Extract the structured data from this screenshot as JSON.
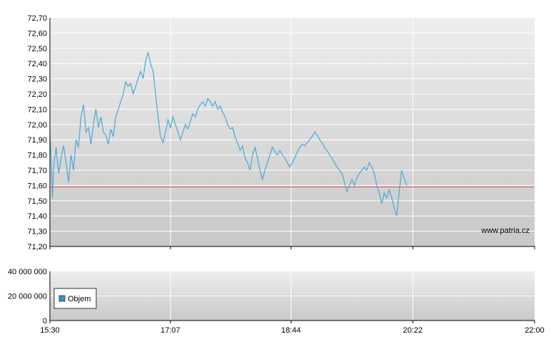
{
  "chart_data": [
    {
      "type": "line",
      "title": "",
      "xlabel": "",
      "ylabel": "",
      "ylim": [
        71.2,
        72.7
      ],
      "yticks": [
        "72,70",
        "72,60",
        "72,50",
        "72,40",
        "72,30",
        "72,20",
        "72,10",
        "72,00",
        "71,90",
        "71,80",
        "71,70",
        "71,60",
        "71,50",
        "71,40",
        "71,30",
        "71,20"
      ],
      "x_time_range": [
        "15:30",
        "22:00"
      ],
      "reference_line": 71.59,
      "grid": true,
      "annotation": "www.patria.cz",
      "colors": {
        "line": "#4aa8d8",
        "reference": "#e05050",
        "grid": "#ffffff"
      },
      "series": [
        {
          "points": [
            [
              "15:30",
              71.95
            ],
            [
              "15:31",
              71.78
            ],
            [
              "15:32",
              71.52
            ],
            [
              "15:33",
              71.72
            ],
            [
              "15:35",
              71.85
            ],
            [
              "15:37",
              71.68
            ],
            [
              "15:39",
              71.78
            ],
            [
              "15:41",
              71.86
            ],
            [
              "15:43",
              71.75
            ],
            [
              "15:45",
              71.62
            ],
            [
              "15:47",
              71.8
            ],
            [
              "15:49",
              71.7
            ],
            [
              "15:51",
              71.9
            ],
            [
              "15:53",
              71.85
            ],
            [
              "15:55",
              72.05
            ],
            [
              "15:57",
              72.13
            ],
            [
              "15:59",
              71.95
            ],
            [
              "16:01",
              71.98
            ],
            [
              "16:03",
              71.87
            ],
            [
              "16:05",
              72.0
            ],
            [
              "16:07",
              72.1
            ],
            [
              "16:09",
              71.98
            ],
            [
              "16:11",
              72.05
            ],
            [
              "16:13",
              71.95
            ],
            [
              "16:15",
              71.93
            ],
            [
              "16:17",
              71.87
            ],
            [
              "16:19",
              71.97
            ],
            [
              "16:21",
              71.92
            ],
            [
              "16:23",
              72.05
            ],
            [
              "16:25",
              72.1
            ],
            [
              "16:27",
              72.15
            ],
            [
              "16:29",
              72.2
            ],
            [
              "16:31",
              72.28
            ],
            [
              "16:33",
              72.25
            ],
            [
              "16:35",
              72.27
            ],
            [
              "16:37",
              72.2
            ],
            [
              "16:39",
              72.25
            ],
            [
              "16:41",
              72.3
            ],
            [
              "16:43",
              72.35
            ],
            [
              "16:45",
              72.3
            ],
            [
              "16:47",
              72.42
            ],
            [
              "16:49",
              72.47
            ],
            [
              "16:51",
              72.4
            ],
            [
              "16:53",
              72.35
            ],
            [
              "16:55",
              72.2
            ],
            [
              "16:57",
              72.05
            ],
            [
              "16:59",
              71.92
            ],
            [
              "17:01",
              71.88
            ],
            [
              "17:03",
              71.95
            ],
            [
              "17:05",
              72.03
            ],
            [
              "17:07",
              71.98
            ],
            [
              "17:09",
              72.05
            ],
            [
              "17:11",
              72.0
            ],
            [
              "17:13",
              71.95
            ],
            [
              "17:15",
              71.9
            ],
            [
              "17:17",
              71.95
            ],
            [
              "17:19",
              72.0
            ],
            [
              "17:21",
              71.97
            ],
            [
              "17:23",
              72.02
            ],
            [
              "17:25",
              72.07
            ],
            [
              "17:27",
              72.05
            ],
            [
              "17:29",
              72.1
            ],
            [
              "17:31",
              72.13
            ],
            [
              "17:33",
              72.15
            ],
            [
              "17:35",
              72.12
            ],
            [
              "17:37",
              72.17
            ],
            [
              "17:39",
              72.15
            ],
            [
              "17:41",
              72.12
            ],
            [
              "17:43",
              72.15
            ],
            [
              "17:45",
              72.1
            ],
            [
              "17:47",
              72.12
            ],
            [
              "17:49",
              72.08
            ],
            [
              "17:51",
              72.05
            ],
            [
              "17:53",
              72.0
            ],
            [
              "17:55",
              71.97
            ],
            [
              "17:57",
              71.98
            ],
            [
              "17:59",
              71.92
            ],
            [
              "18:01",
              71.88
            ],
            [
              "18:03",
              71.83
            ],
            [
              "18:05",
              71.86
            ],
            [
              "18:07",
              71.78
            ],
            [
              "18:09",
              71.75
            ],
            [
              "18:11",
              71.7
            ],
            [
              "18:13",
              71.8
            ],
            [
              "18:15",
              71.85
            ],
            [
              "18:17",
              71.78
            ],
            [
              "18:19",
              71.7
            ],
            [
              "18:21",
              71.64
            ],
            [
              "18:23",
              71.7
            ],
            [
              "18:25",
              71.75
            ],
            [
              "18:27",
              71.8
            ],
            [
              "18:29",
              71.85
            ],
            [
              "18:31",
              71.82
            ],
            [
              "18:33",
              71.8
            ],
            [
              "18:35",
              71.83
            ],
            [
              "18:37",
              71.8
            ],
            [
              "18:39",
              71.78
            ],
            [
              "18:41",
              71.75
            ],
            [
              "18:43",
              71.72
            ],
            [
              "18:45",
              71.75
            ],
            [
              "18:47",
              71.78
            ],
            [
              "18:49",
              71.82
            ],
            [
              "18:51",
              71.85
            ],
            [
              "18:53",
              71.87
            ],
            [
              "18:55",
              71.86
            ],
            [
              "18:57",
              71.88
            ],
            [
              "18:59",
              71.9
            ],
            [
              "19:01",
              71.92
            ],
            [
              "19:03",
              71.95
            ],
            [
              "19:05",
              71.93
            ],
            [
              "19:07",
              71.9
            ],
            [
              "19:09",
              71.88
            ],
            [
              "19:11",
              71.85
            ],
            [
              "19:13",
              71.83
            ],
            [
              "19:15",
              71.8
            ],
            [
              "19:17",
              71.78
            ],
            [
              "19:19",
              71.75
            ],
            [
              "19:21",
              71.72
            ],
            [
              "19:23",
              71.7
            ],
            [
              "19:25",
              71.68
            ],
            [
              "19:27",
              71.62
            ],
            [
              "19:29",
              71.56
            ],
            [
              "19:31",
              71.6
            ],
            [
              "19:33",
              71.64
            ],
            [
              "19:35",
              71.6
            ],
            [
              "19:37",
              71.65
            ],
            [
              "19:39",
              71.68
            ],
            [
              "19:41",
              71.7
            ],
            [
              "19:43",
              71.72
            ],
            [
              "19:45",
              71.7
            ],
            [
              "19:47",
              71.75
            ],
            [
              "19:49",
              71.72
            ],
            [
              "19:51",
              71.68
            ],
            [
              "19:53",
              71.6
            ],
            [
              "19:55",
              71.55
            ],
            [
              "19:57",
              71.48
            ],
            [
              "19:59",
              71.55
            ],
            [
              "20:01",
              71.52
            ],
            [
              "20:03",
              71.57
            ],
            [
              "20:05",
              71.52
            ],
            [
              "20:07",
              71.45
            ],
            [
              "20:09",
              71.4
            ],
            [
              "20:11",
              71.55
            ],
            [
              "20:13",
              71.7
            ],
            [
              "20:15",
              71.65
            ],
            [
              "20:17",
              71.6
            ]
          ]
        }
      ]
    },
    {
      "type": "bar",
      "title": "",
      "xlabel": "",
      "ylabel": "",
      "ylim": [
        0,
        40000000
      ],
      "yticks": [
        "40 000 000",
        "20 000 000",
        "0"
      ],
      "xticks": [
        "15:30",
        "17:07",
        "18:44",
        "20:22",
        "22:00"
      ],
      "legend": {
        "entries": [
          "Objem"
        ],
        "placement": "left"
      },
      "colors": {
        "bar": "#3d8fc8"
      },
      "series": [
        {
          "name": "Objem",
          "values": []
        }
      ]
    }
  ]
}
